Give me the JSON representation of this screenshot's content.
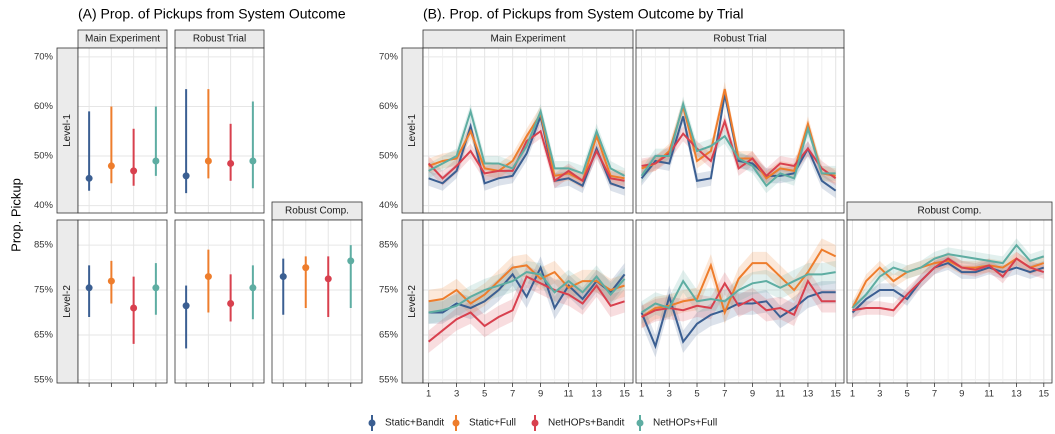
{
  "chart_data": [
    {
      "type": "pointrange",
      "title": "(A) Prop. of Pickups from System Outcome",
      "y_label": "Prop. Pickup",
      "series": [
        {
          "name": "Static+Bandit",
          "color": "#3b5f92"
        },
        {
          "name": "Static+Full",
          "color": "#ee7d2c"
        },
        {
          "name": "NetHOPs+Bandit",
          "color": "#d8404e"
        },
        {
          "name": "NetHOPs+Full",
          "color": "#5eada2"
        }
      ],
      "columns": [
        "Main Experiment",
        "Robust Trial",
        "Robust Comp."
      ],
      "rows": [
        {
          "label": "Level-1",
          "ylim": [
            38.5,
            71.8
          ],
          "yticks": [
            {
              "value": 40,
              "label": "40%"
            },
            {
              "value": 50,
              "label": "50%"
            },
            {
              "value": 60,
              "label": "60%"
            },
            {
              "value": 70,
              "label": "70%"
            }
          ],
          "panels": [
            {
              "values": [
                45.5,
                48,
                47,
                49
              ],
              "lower": [
                43,
                44.5,
                44,
                46
              ],
              "upper": [
                59,
                60,
                55.5,
                60
              ]
            },
            {
              "values": [
                46,
                49,
                48.5,
                49
              ],
              "lower": [
                42.5,
                45.5,
                45,
                43.5
              ],
              "upper": [
                63.5,
                63.5,
                56.5,
                61
              ]
            },
            null
          ]
        },
        {
          "label": "Level-2",
          "ylim": [
            54.3,
            90.6
          ],
          "yticks": [
            {
              "value": 55,
              "label": "55%"
            },
            {
              "value": 65,
              "label": "65%"
            },
            {
              "value": 75,
              "label": "75%"
            },
            {
              "value": 85,
              "label": "85%"
            }
          ],
          "panels": [
            {
              "values": [
                75.5,
                77,
                71,
                75.5
              ],
              "lower": [
                69,
                72,
                63,
                69.5
              ],
              "upper": [
                80.5,
                81.5,
                78,
                81
              ]
            },
            {
              "values": [
                71.5,
                78,
                72,
                75.5
              ],
              "lower": [
                62,
                70,
                68,
                68.5
              ],
              "upper": [
                76,
                84,
                78.5,
                80.5
              ]
            },
            {
              "values": [
                78,
                80,
                77.5,
                81.5
              ],
              "lower": [
                69.5,
                71,
                69,
                71
              ],
              "upper": [
                82,
                82.5,
                82.5,
                85
              ]
            }
          ]
        }
      ]
    },
    {
      "type": "line",
      "title": "(B). Prop. of Pickups from System Outcome by Trial",
      "colors": [
        "#3b5f92",
        "#ee7d2c",
        "#d8404e",
        "#5eada2"
      ],
      "x": [
        1,
        2,
        3,
        4,
        5,
        6,
        7,
        8,
        9,
        10,
        11,
        12,
        13,
        14,
        15
      ],
      "xlim": [
        0.6,
        15.6
      ],
      "xticks": [
        1,
        3,
        5,
        7,
        9,
        11,
        13,
        15
      ],
      "columns": [
        "Main Experiment",
        "Robust Trial",
        "Robust Comp."
      ],
      "rows": [
        {
          "label": "Level-1",
          "ylim": [
            38.5,
            71.8
          ],
          "yticks": [
            {
              "value": 40,
              "label": "40%"
            },
            {
              "value": 50,
              "label": "50%"
            },
            {
              "value": 60,
              "label": "60%"
            },
            {
              "value": 70,
              "label": "70%"
            }
          ],
          "panels": [
            {
              "series": [
                {
                  "values": [
                    45.5,
                    44.5,
                    47,
                    56,
                    44.5,
                    45.5,
                    46,
                    50.5,
                    58,
                    45,
                    45.5,
                    44,
                    51.5,
                    44.5,
                    43.5
                  ],
                  "error": 1.5
                },
                {
                  "values": [
                    48,
                    49,
                    49.5,
                    55,
                    47.5,
                    47,
                    49,
                    54,
                    58.5,
                    46,
                    46.5,
                    45,
                    54,
                    46,
                    45.5
                  ],
                  "error": 1.5
                },
                {
                  "values": [
                    48.5,
                    45.5,
                    48,
                    51,
                    46.5,
                    47,
                    47,
                    53,
                    55,
                    45,
                    47,
                    45,
                    51,
                    45.5,
                    45
                  ],
                  "error": 1.5
                },
                {
                  "values": [
                    47,
                    48.5,
                    50,
                    59,
                    48.5,
                    48.5,
                    47.5,
                    52,
                    59,
                    47.5,
                    47.5,
                    46.5,
                    55,
                    47.5,
                    46
                  ],
                  "error": 1.5
                }
              ]
            },
            {
              "series": [
                {
                  "values": [
                    45.5,
                    49,
                    48.5,
                    58,
                    45,
                    45.5,
                    62.5,
                    49,
                    48.5,
                    46,
                    46,
                    46.5,
                    51.5,
                    45,
                    43
                  ],
                  "error": 1.5
                },
                {
                  "values": [
                    47.5,
                    48.5,
                    51,
                    60,
                    49,
                    51,
                    63.5,
                    49.5,
                    49.5,
                    45.5,
                    47.5,
                    47,
                    56.5,
                    46.5,
                    46
                  ],
                  "error": 1.5
                },
                {
                  "values": [
                    48,
                    48.5,
                    50.5,
                    54.5,
                    51.5,
                    49,
                    57,
                    47.5,
                    49.5,
                    46,
                    48.5,
                    48,
                    51.5,
                    47.5,
                    45.5
                  ],
                  "error": 1.5
                },
                {
                  "values": [
                    46,
                    50,
                    50,
                    60.5,
                    51,
                    52,
                    54,
                    49.5,
                    48,
                    44,
                    46.5,
                    45.5,
                    55.5,
                    46.5,
                    46.5
                  ],
                  "error": 1.5
                }
              ]
            },
            null
          ]
        },
        {
          "label": "Level-2",
          "ylim": [
            54.3,
            90.6
          ],
          "yticks": [
            {
              "value": 55,
              "label": "55%"
            },
            {
              "value": 65,
              "label": "65%"
            },
            {
              "value": 75,
              "label": "75%"
            },
            {
              "value": 85,
              "label": "85%"
            }
          ],
          "panels": [
            {
              "series": [
                {
                  "values": [
                    70,
                    70,
                    72,
                    71,
                    72.5,
                    75,
                    78.5,
                    73.5,
                    80,
                    71,
                    76,
                    73,
                    77,
                    74.5,
                    78.5
                  ],
                  "error": 2.5
                },
                {
                  "values": [
                    72.5,
                    73,
                    75,
                    72,
                    74,
                    77,
                    80,
                    80.5,
                    77.5,
                    79,
                    75.5,
                    77,
                    77,
                    75,
                    76
                  ],
                  "error": 2.5
                },
                {
                  "values": [
                    63.5,
                    66,
                    68.5,
                    70,
                    67,
                    69,
                    70.5,
                    78,
                    76.5,
                    75,
                    74,
                    72,
                    76,
                    71.5,
                    72.5
                  ],
                  "error": 2.5
                },
                {
                  "values": [
                    70,
                    70.5,
                    71.5,
                    73.5,
                    75,
                    76,
                    77,
                    79,
                    78.5,
                    74.5,
                    77,
                    74.5,
                    78,
                    74,
                    77.5
                  ],
                  "error": 2.5
                }
              ]
            },
            {
              "series": [
                {
                  "values": [
                    70,
                    62.5,
                    73.5,
                    63.5,
                    67.5,
                    69.5,
                    70.5,
                    72,
                    72,
                    72.5,
                    69,
                    71,
                    73.5,
                    74.5,
                    74.5
                  ],
                  "error": 2.5
                },
                {
                  "values": [
                    69,
                    71,
                    71.5,
                    72.5,
                    73,
                    80.5,
                    70,
                    77.5,
                    81,
                    81,
                    78,
                    75,
                    79,
                    84,
                    82.5
                  ],
                  "error": 2.5
                },
                {
                  "values": [
                    69,
                    70.5,
                    71,
                    70.5,
                    71.5,
                    71,
                    76.5,
                    71.5,
                    73,
                    70.5,
                    71,
                    69.5,
                    77,
                    72.5,
                    72.5
                  ],
                  "error": 2.5
                },
                {
                  "values": [
                    70,
                    72,
                    71,
                    77,
                    72.5,
                    73,
                    72.5,
                    75,
                    76.5,
                    77,
                    75.5,
                    77,
                    78.5,
                    78.5,
                    79
                  ],
                  "error": 2.5
                }
              ]
            },
            {
              "series": [
                {
                  "values": [
                    70,
                    73,
                    75,
                    75,
                    73,
                    77,
                    80,
                    81,
                    79,
                    79,
                    80,
                    79,
                    80,
                    79,
                    80
                  ],
                  "error": 1.5
                },
                {
                  "values": [
                    71,
                    77,
                    80,
                    77,
                    79,
                    80,
                    81,
                    81.5,
                    80,
                    80,
                    80.5,
                    80,
                    82,
                    80,
                    81
                  ],
                  "error": 1.5
                },
                {
                  "values": [
                    70.5,
                    71,
                    71,
                    70.5,
                    74,
                    77,
                    80,
                    82,
                    80,
                    79.5,
                    80.5,
                    78,
                    82,
                    80,
                    79
                  ],
                  "error": 1.5
                },
                {
                  "values": [
                    71,
                    74,
                    78,
                    80,
                    79,
                    80,
                    82,
                    83,
                    82.5,
                    82,
                    81.5,
                    81,
                    85,
                    81.5,
                    82.5
                  ],
                  "error": 1.5
                }
              ]
            }
          ]
        }
      ]
    }
  ]
}
